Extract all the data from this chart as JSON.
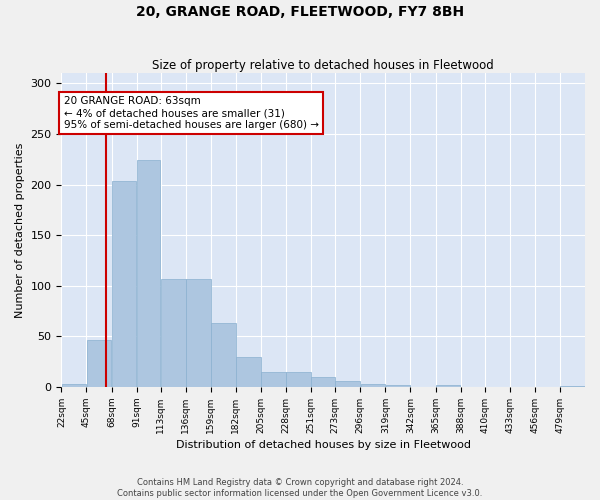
{
  "title1": "20, GRANGE ROAD, FLEETWOOD, FY7 8BH",
  "title2": "Size of property relative to detached houses in Fleetwood",
  "xlabel": "Distribution of detached houses by size in Fleetwood",
  "ylabel": "Number of detached properties",
  "annotation_line1": "20 GRANGE ROAD: 63sqm",
  "annotation_line2": "← 4% of detached houses are smaller (31)",
  "annotation_line3": "95% of semi-detached houses are larger (680) →",
  "property_size": 63,
  "bar_edges": [
    22,
    45,
    68,
    91,
    113,
    136,
    159,
    182,
    205,
    228,
    251,
    273,
    296,
    319,
    342,
    365,
    388,
    410,
    433,
    456,
    479,
    502
  ],
  "bar_heights": [
    3,
    46,
    203,
    224,
    107,
    107,
    63,
    30,
    15,
    15,
    10,
    6,
    3,
    2,
    0,
    2,
    0,
    0,
    0,
    0,
    1,
    0
  ],
  "bar_color": "#adc6e0",
  "bar_edge_color": "#8ab0d0",
  "vline_color": "#cc0000",
  "annotation_box_color": "#cc0000",
  "fig_bg_color": "#f0f0f0",
  "plot_bg_color": "#dce6f5",
  "grid_color": "#ffffff",
  "tick_labels": [
    "22sqm",
    "45sqm",
    "68sqm",
    "91sqm",
    "113sqm",
    "136sqm",
    "159sqm",
    "182sqm",
    "205sqm",
    "228sqm",
    "251sqm",
    "273sqm",
    "296sqm",
    "319sqm",
    "342sqm",
    "365sqm",
    "388sqm",
    "410sqm",
    "433sqm",
    "456sqm",
    "479sqm"
  ],
  "ylim": [
    0,
    310
  ],
  "yticks": [
    0,
    50,
    100,
    150,
    200,
    250,
    300
  ],
  "footnote1": "Contains HM Land Registry data © Crown copyright and database right 2024.",
  "footnote2": "Contains public sector information licensed under the Open Government Licence v3.0."
}
